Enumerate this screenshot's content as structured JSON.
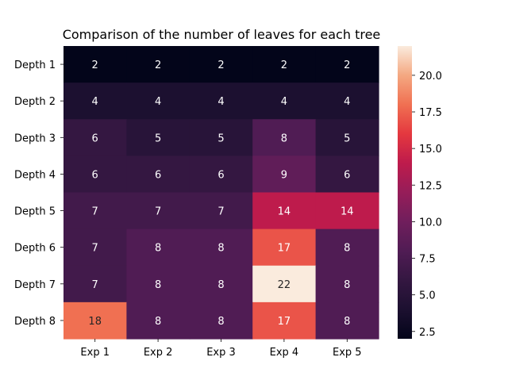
{
  "chart_data": {
    "type": "heatmap",
    "title": "Comparison of the number of leaves for each tree",
    "xlabel": "",
    "ylabel": "",
    "x_categories": [
      "Exp 1",
      "Exp 2",
      "Exp 3",
      "Exp 4",
      "Exp 5"
    ],
    "y_categories": [
      "Depth 1",
      "Depth 2",
      "Depth 3",
      "Depth 4",
      "Depth 5",
      "Depth 6",
      "Depth 7",
      "Depth 8"
    ],
    "values": [
      [
        2,
        2,
        2,
        2,
        2
      ],
      [
        4,
        4,
        4,
        4,
        4
      ],
      [
        6,
        5,
        5,
        8,
        5
      ],
      [
        6,
        6,
        6,
        9,
        6
      ],
      [
        7,
        7,
        7,
        14,
        14
      ],
      [
        7,
        8,
        8,
        17,
        8
      ],
      [
        7,
        8,
        8,
        22,
        8
      ],
      [
        18,
        8,
        8,
        17,
        8
      ]
    ],
    "vmin": 2,
    "vmax": 22,
    "colormap": "rocket",
    "annotations": true,
    "colorbar": {
      "ticks": [
        2.5,
        5.0,
        7.5,
        10.0,
        12.5,
        15.0,
        17.5,
        20.0
      ],
      "tick_labels": [
        "2.5",
        "5.0",
        "7.5",
        "10.0",
        "12.5",
        "15.0",
        "17.5",
        "20.0"
      ]
    },
    "grid": false
  }
}
